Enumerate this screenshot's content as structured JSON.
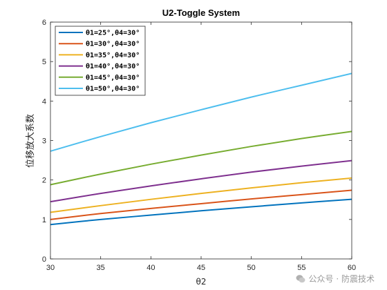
{
  "chart_data": {
    "type": "line",
    "title": "U2-Toggle System",
    "xlabel": "θ2",
    "ylabel": "位移放大系数",
    "xlim": [
      30,
      60
    ],
    "ylim": [
      0,
      6
    ],
    "xticks": [
      30,
      35,
      40,
      45,
      50,
      55,
      60
    ],
    "yticks": [
      0,
      1,
      2,
      3,
      4,
      5,
      6
    ],
    "grid": false,
    "legend_position": "top-left",
    "x": [
      30,
      35,
      40,
      45,
      50,
      55,
      60
    ],
    "series": [
      {
        "name": "θ1=25°,θ4=30°",
        "color": "#0072BD",
        "values": [
          0.87,
          1.0,
          1.11,
          1.22,
          1.32,
          1.42,
          1.51
        ]
      },
      {
        "name": "θ1=30°,θ4=30°",
        "color": "#D95319",
        "values": [
          1.0,
          1.15,
          1.28,
          1.4,
          1.52,
          1.63,
          1.74
        ]
      },
      {
        "name": "θ1=35°,θ4=30°",
        "color": "#EDB120",
        "values": [
          1.18,
          1.35,
          1.51,
          1.66,
          1.8,
          1.93,
          2.05
        ]
      },
      {
        "name": "θ1=40°,θ4=30°",
        "color": "#7E2F8E",
        "values": [
          1.45,
          1.66,
          1.85,
          2.03,
          2.2,
          2.35,
          2.49
        ]
      },
      {
        "name": "θ1=45°,θ4=30°",
        "color": "#77AC30",
        "values": [
          1.88,
          2.15,
          2.4,
          2.63,
          2.85,
          3.05,
          3.23
        ]
      },
      {
        "name": "θ1=50°,θ4=30°",
        "color": "#4DBEEE",
        "values": [
          2.73,
          3.1,
          3.45,
          3.78,
          4.1,
          4.4,
          4.7
        ]
      }
    ]
  },
  "watermark": {
    "text": "公众号 · 防震技术",
    "icon": "wechat-icon"
  }
}
